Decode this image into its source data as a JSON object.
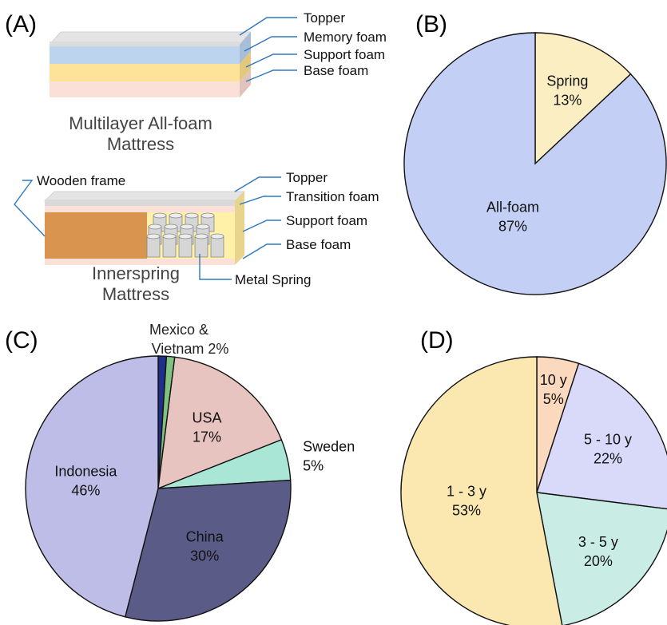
{
  "panels": {
    "a": {
      "letter": "(A)",
      "foam_mattress": {
        "caption_line1": "Multilayer All-foam",
        "caption_line2": "Mattress",
        "layers": [
          {
            "name": "Topper",
            "color": "#d9d9d9"
          },
          {
            "name": "Memory foam",
            "color": "#bcd4ee"
          },
          {
            "name": "Support foam",
            "color": "#fde39a"
          },
          {
            "name": "Base foam",
            "color": "#fbe0d8"
          }
        ]
      },
      "spring_mattress": {
        "caption_line1": "Innerspring",
        "caption_line2": "Mattress",
        "frame_label": "Wooden frame",
        "spring_label": "Metal Spring",
        "layers": [
          {
            "name": "Topper",
            "color": "#d9d9d9"
          },
          {
            "name": "Transition foam",
            "color": "#fbe0d8"
          },
          {
            "name": "Support foam",
            "color": "#fff2a8"
          },
          {
            "name": "Base foam",
            "color": "#fbe0d8"
          }
        ],
        "frame_color": "#d99450",
        "spring_color": "#d6d6d6"
      }
    },
    "b": {
      "letter": "(B)"
    },
    "c": {
      "letter": "(C)"
    },
    "d": {
      "letter": "(D)"
    }
  },
  "chart_data": [
    {
      "panel": "B",
      "type": "pie",
      "title": "",
      "start_angle_deg": 0,
      "direction": "clockwise",
      "slices": [
        {
          "name": "Spring",
          "value": 13,
          "value_label": "13%",
          "color": "#fbeec3"
        },
        {
          "name": "All-foam",
          "value": 87,
          "value_label": "87%",
          "color": "#c4cff5"
        }
      ]
    },
    {
      "panel": "C",
      "type": "pie",
      "title": "",
      "start_angle_deg": 0,
      "direction": "clockwise",
      "slices": [
        {
          "name": "Mexico",
          "value": 1,
          "value_label": "",
          "color": "#1f2f8a"
        },
        {
          "name": "Vietnam",
          "value": 1,
          "value_label": "",
          "color": "#7fc27f"
        },
        {
          "name": "USA",
          "value": 17,
          "value_label": "17%",
          "color": "#e8c4c0"
        },
        {
          "name": "Sweden",
          "value": 5,
          "value_label": "5%",
          "color": "#a9e6d6"
        },
        {
          "name": "China",
          "value": 30,
          "value_label": "30%",
          "color": "#5b5b87"
        },
        {
          "name": "Indonesia",
          "value": 46,
          "value_label": "46%",
          "color": "#bebde8"
        }
      ],
      "annotation_line1": "Mexico &",
      "annotation_line2": "Vietnam 2%"
    },
    {
      "panel": "D",
      "type": "pie",
      "title": "",
      "start_angle_deg": 0,
      "direction": "clockwise",
      "slices": [
        {
          "name": "10 y",
          "value": 5,
          "value_label": "5%",
          "color": "#fad9bf"
        },
        {
          "name": "5 - 10 y",
          "value": 22,
          "value_label": "22%",
          "color": "#d9d9fa"
        },
        {
          "name": "3 - 5 y",
          "value": 20,
          "value_label": "20%",
          "color": "#c9ede4"
        },
        {
          "name": "1 - 3 y",
          "value": 53,
          "value_label": "53%",
          "color": "#fbe8b0"
        }
      ]
    }
  ]
}
